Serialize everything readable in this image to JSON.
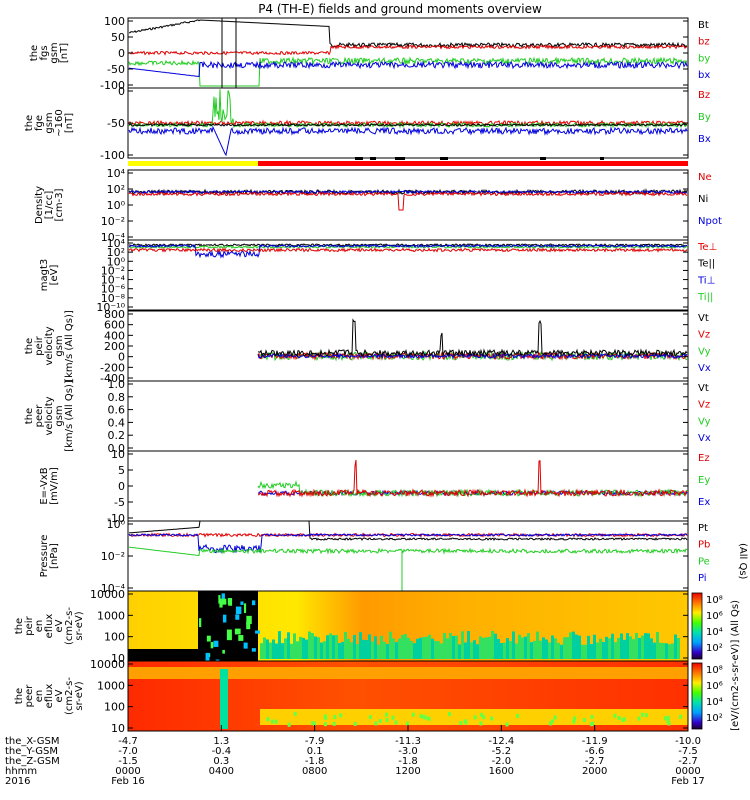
{
  "title": "P4 (TH-E) fields and ground moments overview",
  "colors": {
    "black": "#000000",
    "red": "#e00000",
    "green": "#22cc22",
    "blue": "#0000dd",
    "yellow": "#ffff00",
    "barred": "#ff0000"
  },
  "chart_data": [
    {
      "type": "line",
      "panel": "fgs",
      "ylabel": [
        "the",
        "fgs",
        "gsm",
        "[nT]"
      ],
      "ylim": [
        -100,
        100
      ],
      "yticks": [
        "100",
        "50",
        "0",
        "-50",
        "-100"
      ],
      "series": [
        {
          "name": "Bt",
          "color": "black"
        },
        {
          "name": "bz",
          "color": "red"
        },
        {
          "name": "by",
          "color": "green"
        },
        {
          "name": "bx",
          "color": "blue"
        }
      ]
    },
    {
      "type": "line",
      "panel": "fgs_dsl",
      "ylabel": [
        "the",
        "fge",
        "gsm",
        "~160",
        "[nT]"
      ],
      "ylim": [
        -120,
        20
      ],
      "yticks": [
        "0",
        "-50",
        "-100"
      ],
      "series": [
        {
          "name": "Bz",
          "color": "red"
        },
        {
          "name": "By",
          "color": "green"
        },
        {
          "name": "Bx",
          "color": "blue"
        }
      ]
    },
    {
      "type": "line",
      "panel": "density",
      "ylabel": [
        "Density",
        "[1/cc]",
        "[cm-3]"
      ],
      "log": true,
      "yticks": [
        "10⁴",
        "10²",
        "10⁰",
        "10⁻²",
        "10⁻⁴"
      ],
      "series": [
        {
          "name": "Ne",
          "color": "red"
        },
        {
          "name": "Ni",
          "color": "black"
        },
        {
          "name": "Npot",
          "color": "blue"
        }
      ]
    },
    {
      "type": "line",
      "panel": "temperature",
      "ylabel": [
        "magt3",
        "[eV]"
      ],
      "log": true,
      "yticks": [
        "10⁴",
        "10²",
        "10⁰",
        "10⁻²",
        "10⁻⁴",
        "10⁻⁶",
        "10⁻⁸",
        "10⁻¹⁰"
      ],
      "series": [
        {
          "name": "Te⊥",
          "color": "red"
        },
        {
          "name": "Te||",
          "color": "black"
        },
        {
          "name": "Ti⊥",
          "color": "blue"
        },
        {
          "name": "Ti||",
          "color": "green"
        }
      ]
    },
    {
      "type": "line",
      "panel": "peir_velocity",
      "ylabel": [
        "the",
        "peir",
        "velocity",
        "gsm",
        "[km/s (All Qs)]"
      ],
      "ylim": [
        -400,
        800
      ],
      "yticks": [
        "800",
        "600",
        "400",
        "200",
        "0",
        "-200",
        "-400"
      ],
      "series": [
        {
          "name": "Vt",
          "color": "black"
        },
        {
          "name": "Vz",
          "color": "red"
        },
        {
          "name": "Vy",
          "color": "green"
        },
        {
          "name": "Vx",
          "color": "blue"
        }
      ]
    },
    {
      "type": "line",
      "panel": "peer_velocity",
      "ylabel": [
        "the",
        "peer",
        "velocity",
        "gsm",
        "[km/s (All Qs)]"
      ],
      "ylim": [
        0,
        1
      ],
      "yticks": [
        "1.0",
        "0.8",
        "0.6",
        "0.4",
        "0.2",
        "0.0"
      ],
      "series": [
        {
          "name": "Vt",
          "color": "black"
        },
        {
          "name": "Vz",
          "color": "red"
        },
        {
          "name": "Vy",
          "color": "green"
        },
        {
          "name": "Vx",
          "color": "blue"
        }
      ]
    },
    {
      "type": "line",
      "panel": "efield",
      "ylabel": [
        "E=-VxB",
        "[mV/m]"
      ],
      "ylim": [
        -12,
        12
      ],
      "yticks": [
        "10",
        "5",
        "0",
        "-5",
        "-10"
      ],
      "series": [
        {
          "name": "Ez",
          "color": "red"
        },
        {
          "name": "Ey",
          "color": "green"
        },
        {
          "name": "Ex",
          "color": "blue"
        }
      ]
    },
    {
      "type": "line",
      "panel": "pressure",
      "ylabel": [
        "Pressure",
        "[nPa]"
      ],
      "log": true,
      "yticks": [
        "10⁰",
        "10⁻²",
        "10⁻⁴"
      ],
      "series": [
        {
          "name": "Pt",
          "color": "black"
        },
        {
          "name": "Pb",
          "color": "red"
        },
        {
          "name": "Pe",
          "color": "green"
        },
        {
          "name": "Pi",
          "color": "blue"
        }
      ]
    },
    {
      "type": "heatmap",
      "panel": "peir_eflux",
      "ylabel": [
        "the",
        "peir",
        "en",
        "eflux",
        "eV",
        "(cm2-s-",
        "sr-eV)"
      ],
      "yticks": [
        "10000",
        "1000",
        "100",
        "10"
      ],
      "colorbar": {
        "ticks": [
          "10⁸",
          "10⁶",
          "10⁴",
          "10²"
        ],
        "label": "[eV/(cm2-s-sr-eV)] (All Qs)"
      }
    },
    {
      "type": "heatmap",
      "panel": "peer_eflux",
      "ylabel": [
        "the",
        "peer",
        "en",
        "eflux",
        "eV",
        "(cm2-s-",
        "sr-eV)"
      ],
      "yticks": [
        "10000",
        "1000",
        "100",
        "10"
      ],
      "colorbar": {
        "ticks": [
          "10⁸",
          "10⁶",
          "10⁴",
          "10²"
        ],
        "label": "[eV/(cm2-s-sr-eV)] (All Qs)"
      }
    }
  ],
  "legend_pe_suffix": "(All Qs)",
  "xaxis": {
    "rows": [
      {
        "label": "the_X-GSM",
        "values": [
          "-4.7",
          "1.3",
          "-7.9",
          "-11.3",
          "-12.4",
          "-11.9",
          "-10.0"
        ]
      },
      {
        "label": "the_Y-GSM",
        "values": [
          "-7.0",
          "-0.4",
          "0.1",
          "-3.0",
          "-5.2",
          "-6.6",
          "-7.5"
        ]
      },
      {
        "label": "the_Z-GSM",
        "values": [
          "-1.5",
          "0.3",
          "-1.8",
          "-1.8",
          "-2.0",
          "-2.7",
          "-2.7"
        ]
      },
      {
        "label": "hhmm",
        "values": [
          "0000",
          "0400",
          "0800",
          "1200",
          "1600",
          "2000",
          "0000"
        ]
      },
      {
        "label": "2016",
        "values": [
          "Feb 16",
          "",
          "",
          "",
          "",
          "",
          "Feb 17"
        ]
      }
    ]
  }
}
